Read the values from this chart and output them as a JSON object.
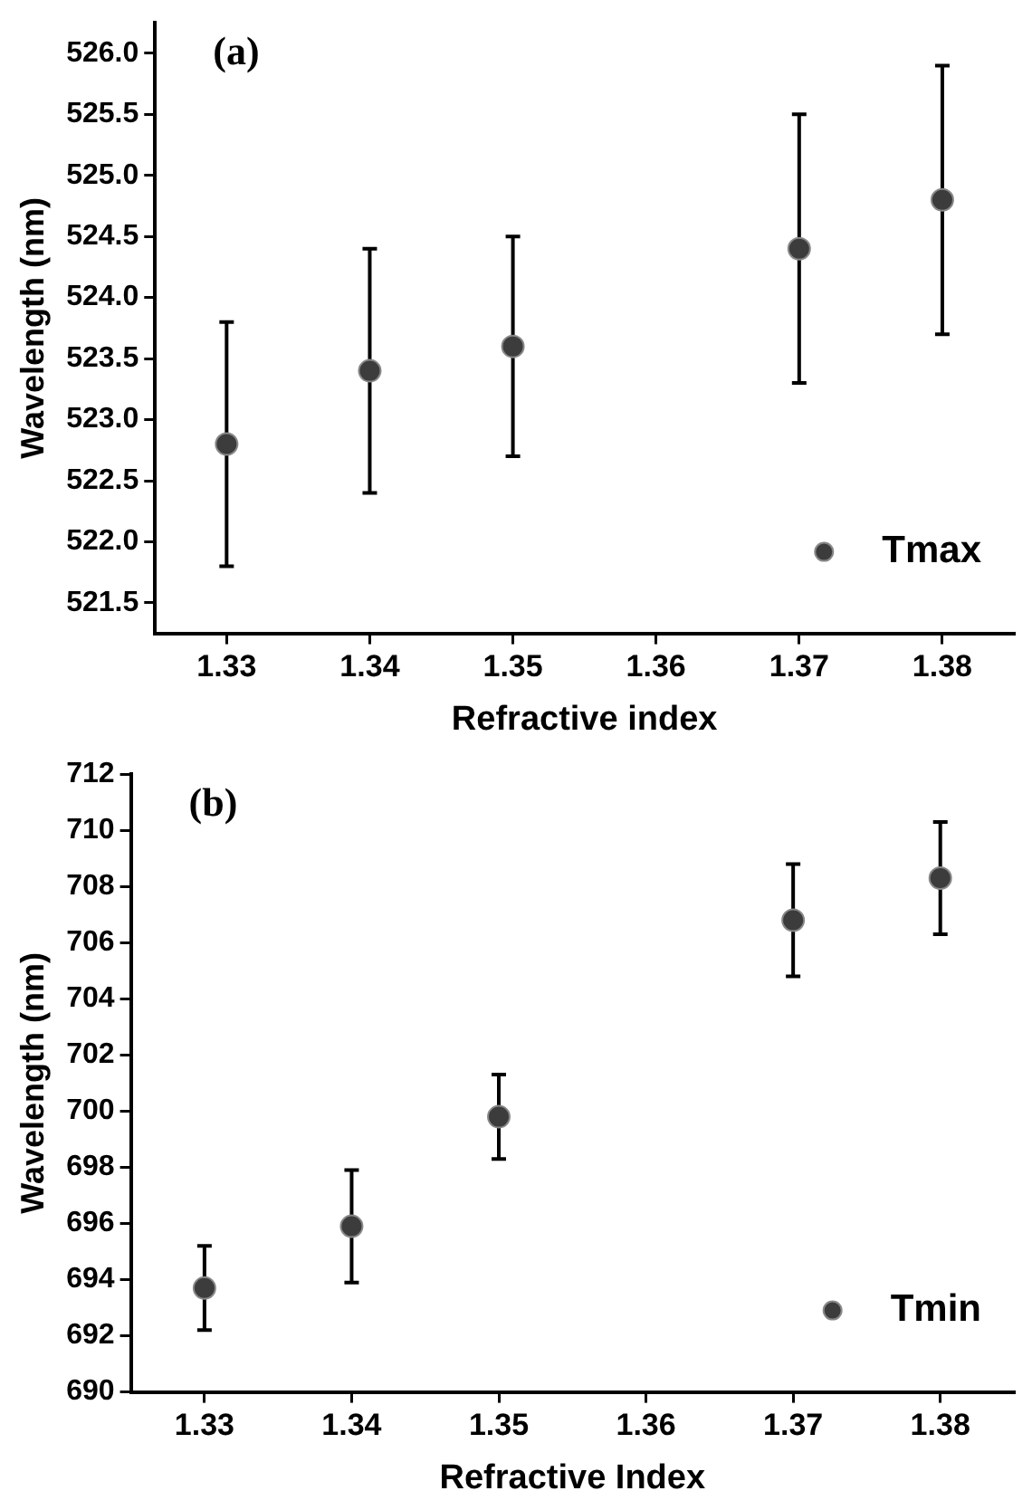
{
  "chart_data": [
    {
      "type": "scatter",
      "title": "(a)",
      "xlabel": "Refractive index",
      "ylabel": "Wavelength (nm)",
      "xlim": [
        1.325,
        1.385
      ],
      "xticks": [
        1.33,
        1.34,
        1.35,
        1.36,
        1.37,
        1.38
      ],
      "ylim": [
        521.25,
        526.25
      ],
      "yticks": [
        521.5,
        {
          "value": 522,
          "label": "522.0"
        },
        522.5,
        {
          "value": 523,
          "label": "523.0"
        },
        523.5,
        {
          "value": 524,
          "label": "524.0"
        },
        524.5,
        {
          "value": 525,
          "label": "525.0"
        },
        525.5,
        {
          "value": 526,
          "label": "526.0"
        }
      ],
      "grid": false,
      "legend": "bottom right",
      "marker": "circle",
      "series": [
        {
          "name": "Tmax",
          "color": "#3c3c3c",
          "x": [
            1.33,
            1.34,
            1.35,
            1.37,
            1.38
          ],
          "values": [
            522.8,
            523.4,
            523.6,
            524.4,
            524.8
          ],
          "errors": [
            1.0,
            1.0,
            [
              522.7,
              524.5
            ],
            1.1,
            1.1
          ]
        }
      ]
    },
    {
      "type": "scatter",
      "title": "(b)",
      "xlabel": "Refractive Index",
      "ylabel": "Wavelength (nm)",
      "xlim": [
        1.325,
        1.385
      ],
      "xticks": [
        1.33,
        1.34,
        1.35,
        1.36,
        1.37,
        1.38
      ],
      "ylim": [
        690,
        712
      ],
      "yticks": [
        690,
        692,
        694,
        696,
        698,
        700,
        702,
        704,
        706,
        708,
        710,
        712
      ],
      "grid": false,
      "legend": "bottom right",
      "marker": "circle",
      "series": [
        {
          "name": "Tmin",
          "color": "#3c3c3c",
          "x": [
            1.33,
            1.34,
            1.35,
            1.37,
            1.38
          ],
          "values": [
            693.7,
            695.9,
            699.8,
            706.8,
            708.3
          ],
          "errors": [
            1.5,
            2,
            1.5,
            2,
            2
          ]
        }
      ]
    }
  ]
}
